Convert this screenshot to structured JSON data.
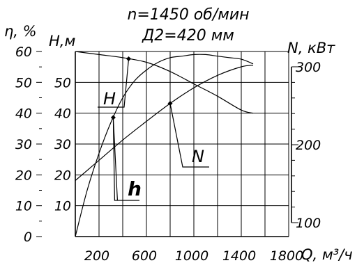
{
  "chart_data": {
    "type": "line",
    "title": [
      "n=1450 об/мин",
      "Д2=420 мм"
    ],
    "xlabel": "Q, м³/ч",
    "x_ticks": [
      "200",
      "600",
      "1000",
      "1400",
      "1800"
    ],
    "left_axis_eta": {
      "label": "η, %",
      "ticks": [
        "0",
        "10",
        "20",
        "30",
        "40",
        "50",
        "60"
      ],
      "range": [
        0,
        60
      ]
    },
    "left_axis_h": {
      "label": "H,м",
      "ticks": [
        "10",
        "20",
        "30",
        "40",
        "50"
      ],
      "range": [
        0,
        60
      ]
    },
    "right_axis_n": {
      "label": "N, кВт",
      "ticks": [
        "100",
        "200",
        "300"
      ],
      "range": [
        100,
        300
      ]
    },
    "series": [
      {
        "name": "H",
        "axis": "H",
        "x": [
          0,
          200,
          400,
          600,
          800,
          1000,
          1200,
          1400,
          1500
        ],
        "y": [
          60,
          59,
          58,
          56.5,
          53.5,
          49.5,
          45.5,
          41,
          40
        ]
      },
      {
        "name": "h",
        "axis": "eta",
        "x": [
          0,
          100,
          200,
          300,
          400,
          500,
          600,
          700,
          800,
          900,
          1000,
          1100,
          1200,
          1300,
          1400,
          1500
        ],
        "y": [
          0,
          15,
          27,
          37,
          45,
          50.5,
          54,
          56.5,
          58,
          58.5,
          59,
          59,
          58.5,
          58,
          57.5,
          56
        ]
      },
      {
        "name": "N",
        "axis": "N",
        "x": [
          0,
          200,
          400,
          600,
          800,
          1000,
          1200,
          1400,
          1500
        ],
        "y": [
          154,
          180,
          206,
          230,
          253,
          273,
          289,
          300,
          302
        ]
      }
    ],
    "markers": [
      {
        "series": "H",
        "x": 450
      },
      {
        "series": "h",
        "x": 320
      },
      {
        "series": "N",
        "x": 800
      }
    ]
  }
}
